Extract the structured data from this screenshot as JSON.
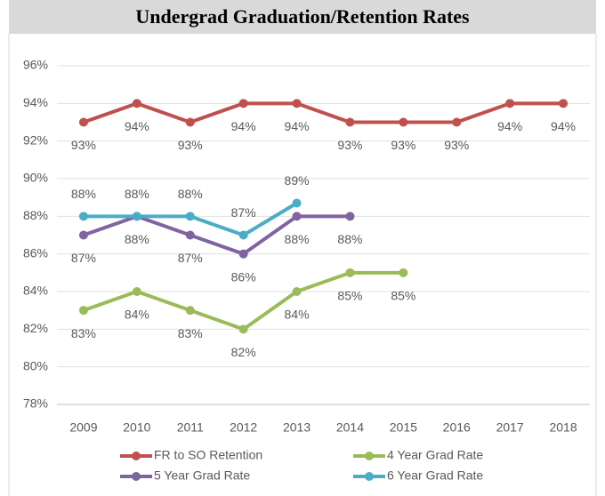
{
  "chart_data": {
    "type": "line",
    "title": "Undergrad Graduation/Retention Rates",
    "categories": [
      "2009",
      "2010",
      "2011",
      "2012",
      "2013",
      "2014",
      "2015",
      "2016",
      "2017",
      "2018"
    ],
    "ylim": [
      78,
      96
    ],
    "yticks": [
      {
        "value": 78,
        "label": "78%"
      },
      {
        "value": 80,
        "label": "80%"
      },
      {
        "value": 82,
        "label": "82%"
      },
      {
        "value": 84,
        "label": "84%"
      },
      {
        "value": 86,
        "label": "86%"
      },
      {
        "value": 88,
        "label": "88%"
      },
      {
        "value": 90,
        "label": "90%"
      },
      {
        "value": 92,
        "label": "92%"
      },
      {
        "value": 94,
        "label": "94%"
      },
      {
        "value": 96,
        "label": "96%"
      }
    ],
    "grid": true,
    "legend": "bottom",
    "series": [
      {
        "name": "FR to SO Retention",
        "color": "#c0504d",
        "values": [
          93,
          94,
          93,
          94,
          94,
          93,
          93,
          93,
          94,
          94
        ],
        "value_labels": [
          "93%",
          "94%",
          "93%",
          "94%",
          "94%",
          "93%",
          "93%",
          "93%",
          "94%",
          "94%"
        ]
      },
      {
        "name": "4 Year Grad Rate",
        "color": "#9bbb59",
        "values": [
          83,
          84,
          83,
          82,
          84,
          85,
          85,
          null,
          null,
          null
        ],
        "value_labels": [
          "83%",
          "84%",
          "83%",
          "82%",
          "84%",
          "85%",
          "85%",
          null,
          null,
          null
        ]
      },
      {
        "name": "5 Year Grad Rate",
        "color": "#8064a2",
        "values": [
          87,
          88,
          87,
          86,
          88,
          88,
          null,
          null,
          null,
          null
        ],
        "value_labels": [
          "87%",
          "88%",
          "87%",
          "86%",
          "88%",
          "88%",
          null,
          null,
          null,
          null
        ]
      },
      {
        "name": "6 Year Grad Rate",
        "color": "#4bacc6",
        "values": [
          88,
          88,
          88,
          87,
          88.7,
          null,
          null,
          null,
          null,
          null
        ],
        "value_labels": [
          "88%",
          "88%",
          "88%",
          "87%",
          "89%",
          null,
          null,
          null,
          null,
          null
        ]
      }
    ]
  }
}
